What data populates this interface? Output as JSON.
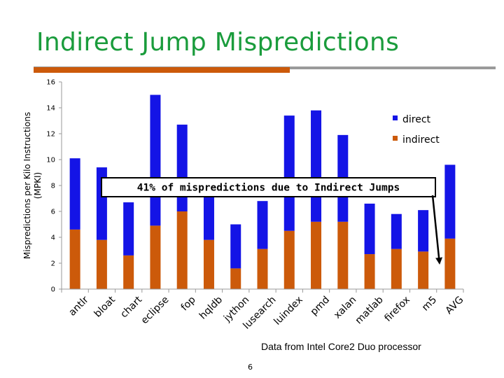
{
  "slide": {
    "title": "Indirect Jump Mispredictions",
    "source_note": "Data from Intel Core2 Duo processor",
    "page_number": "6"
  },
  "chart_data": {
    "type": "bar",
    "stacked": true,
    "categories": [
      "antlr",
      "bloat",
      "chart",
      "eclipse",
      "fop",
      "hqldb",
      "jython",
      "lusearch",
      "luindex",
      "pmd",
      "xalan",
      "matlab",
      "firefox",
      "m5",
      "AVG"
    ],
    "series": [
      {
        "name": "indirect",
        "color": "#cc5a0a",
        "values": [
          4.6,
          3.8,
          2.6,
          4.9,
          6.0,
          3.8,
          1.6,
          3.1,
          4.5,
          5.2,
          5.2,
          2.7,
          3.1,
          2.9,
          3.9
        ]
      },
      {
        "name": "direct",
        "color": "#1414e6",
        "values": [
          5.5,
          5.6,
          4.1,
          10.1,
          6.7,
          3.3,
          3.4,
          3.7,
          8.9,
          8.6,
          6.7,
          3.9,
          2.7,
          3.2,
          5.7
        ]
      }
    ],
    "ylabel": "Mispredictions per Kilo Instructions (MPKI)",
    "xlabel": "",
    "ylim": [
      0,
      16
    ],
    "yticks": [
      0,
      2,
      4,
      6,
      8,
      10,
      12,
      14,
      16
    ],
    "grid": false,
    "legend": {
      "position": "top-right",
      "entries": [
        "direct",
        "indirect"
      ]
    },
    "annotation": {
      "text": "41% of mispredictions due to Indirect Jumps",
      "points_to": "AVG"
    }
  }
}
